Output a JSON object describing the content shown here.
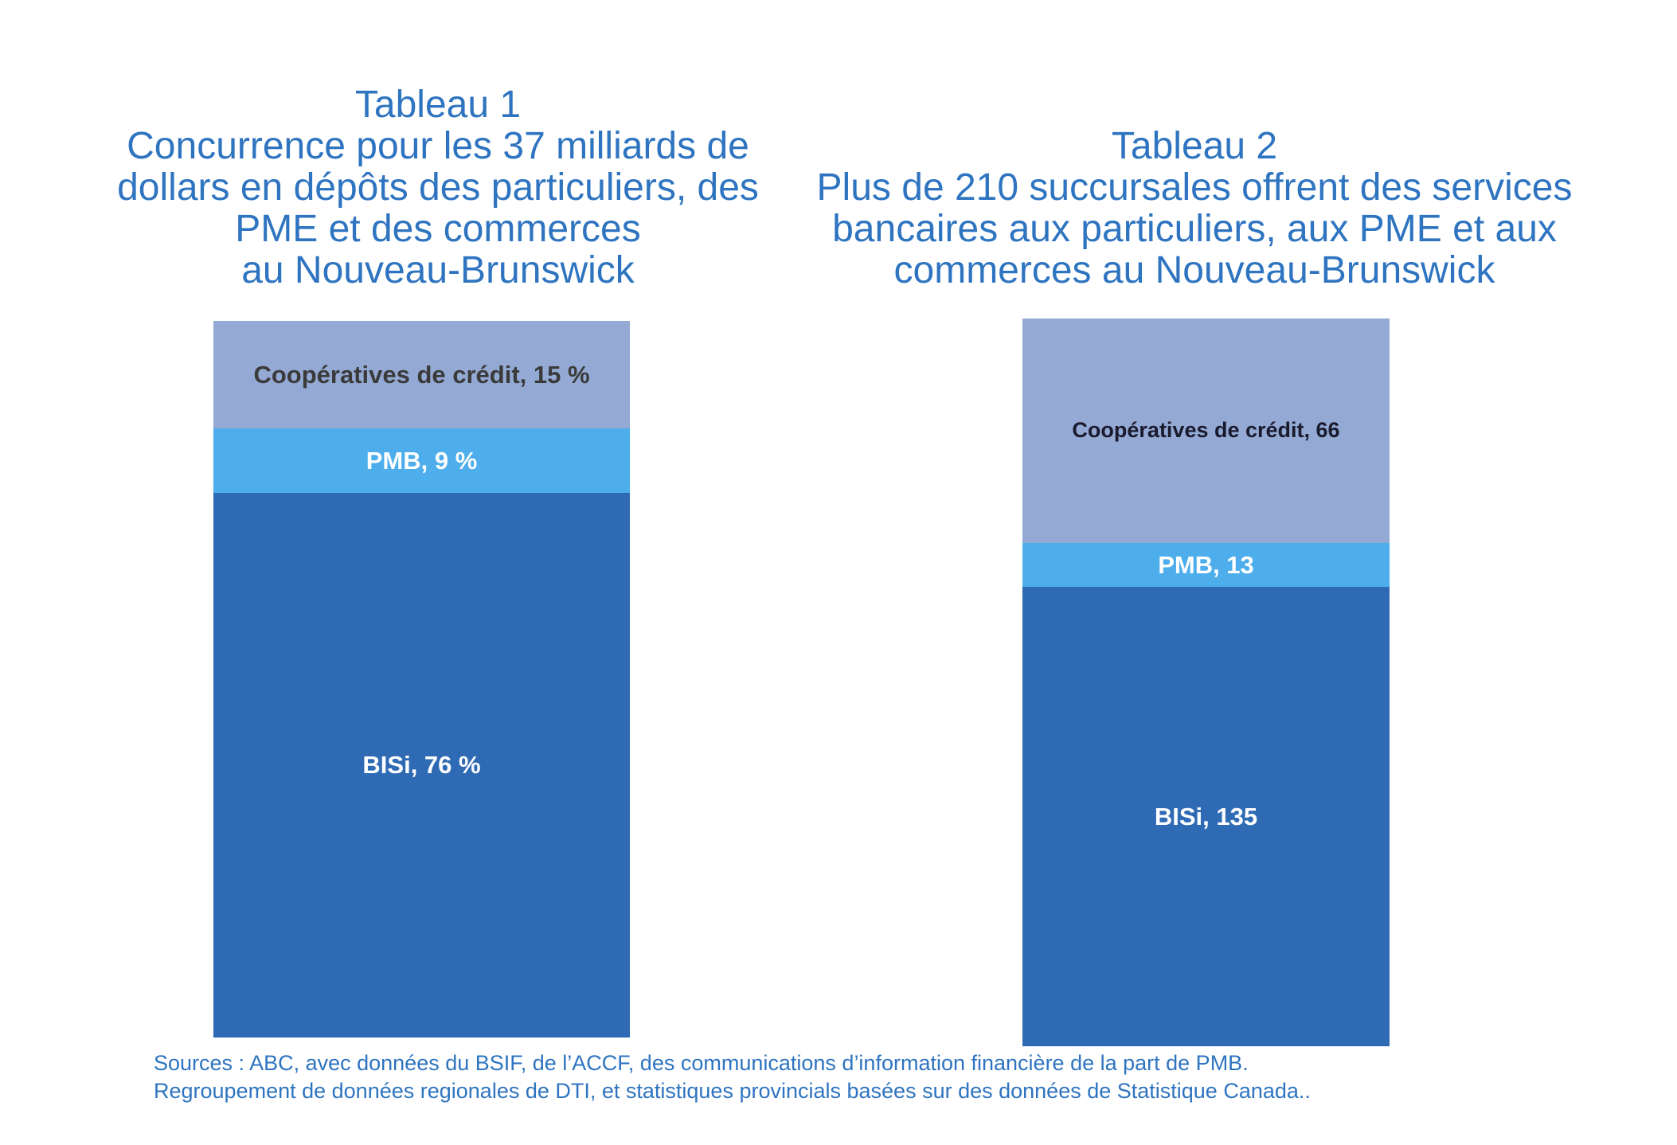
{
  "chart_data": [
    {
      "type": "bar",
      "stacked": true,
      "title_lines": [
        "Tableau 1",
        "Concurrence pour les 37 milliards de",
        "dollars en dépôts des particuliers, des",
        "PME et des commerces",
        "au Nouveau-Brunswick"
      ],
      "total": 100,
      "series": [
        {
          "key": "bisi",
          "label": "BISi, 76 %",
          "value": 76,
          "color": "#2E6BB4",
          "text_color": "#ffffff"
        },
        {
          "key": "pmb",
          "label": "PMB, 9 %",
          "value": 9,
          "color": "#4DAEEB",
          "text_color": "#ffffff"
        },
        {
          "key": "coop",
          "label": "Coopératives de crédit, 15 %",
          "value": 15,
          "color": "#94AAD4",
          "text_color": "#3a3a3a"
        }
      ]
    },
    {
      "type": "bar",
      "stacked": true,
      "title_lines": [
        "Tableau 2",
        "Plus de 210 succursales offrent des services",
        "bancaires aux particuliers, aux PME et aux",
        "commerces au Nouveau-Brunswick"
      ],
      "total": 214,
      "series": [
        {
          "key": "bisi",
          "label": "BISi, 135",
          "value": 135,
          "color": "#2E6BB4",
          "text_color": "#ffffff"
        },
        {
          "key": "pmb",
          "label": "PMB, 13",
          "value": 13,
          "color": "#4DAEEB",
          "text_color": "#ffffff"
        },
        {
          "key": "coop",
          "label": "Coopératives de crédit, 66",
          "value": 66,
          "color": "#94AAD4",
          "text_color": "#1a1a2e"
        }
      ]
    }
  ],
  "sources": {
    "line1": "Sources : ABC, avec données du BSIF, de l’ACCF, des communications d’information financière de la part de PMB.",
    "line2": "Regroupement de données regionales de DTI, et statistiques provincials basées sur des données de Statistique Canada.."
  }
}
